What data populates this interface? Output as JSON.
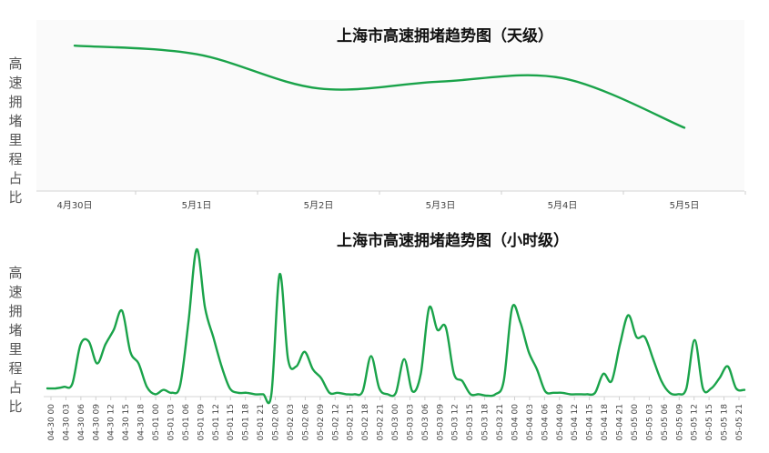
{
  "colors": {
    "line": "#1aa34a",
    "axis": "#d6d6d6",
    "panel": "#fafafa"
  },
  "ylabel": "高速拥堵里程占比",
  "chart_data": [
    {
      "type": "line",
      "title": "上海市高速拥堵趋势图（天级）",
      "xlabel": "",
      "ylabel": "高速拥堵里程占比",
      "categories": [
        "4月30日",
        "5月1日",
        "5月2日",
        "5月3日",
        "5月4日",
        "5月5日"
      ],
      "values": [
        0.85,
        0.8,
        0.6,
        0.64,
        0.66,
        0.37
      ],
      "ylim": [
        0,
        1
      ],
      "grid": false,
      "legend": "none"
    },
    {
      "type": "line",
      "title": "上海市高速拥堵趋势图（小时级）",
      "xlabel": "",
      "ylabel": "高速拥堵里程占比",
      "tick_labels": [
        "04-30 00",
        "04-30 03",
        "04-30 06",
        "04-30 09",
        "04-30 12",
        "04-30 15",
        "04-30 18",
        "05-01 00",
        "05-01 03",
        "05-01 06",
        "05-01 09",
        "05-01 12",
        "05-01 15",
        "05-01 18",
        "05-01 21",
        "05-02 00",
        "05-02 03",
        "05-02 06",
        "05-02 09",
        "05-02 12",
        "05-02 15",
        "05-02 18",
        "05-02 21",
        "05-03 00",
        "05-03 03",
        "05-03 06",
        "05-03 09",
        "05-03 12",
        "05-03 15",
        "05-03 18",
        "05-03 21",
        "05-04 00",
        "05-04 03",
        "05-04 06",
        "05-04 09",
        "05-04 12",
        "05-04 15",
        "05-04 18",
        "05-04 21",
        "05-05 00",
        "05-05 03",
        "05-05 06",
        "05-05 09",
        "05-05 12",
        "05-05 15",
        "05-05 18",
        "05-05 21"
      ],
      "values": [
        0.05,
        0.05,
        0.06,
        0.08,
        0.35,
        0.37,
        0.22,
        0.35,
        0.45,
        0.58,
        0.3,
        0.22,
        0.06,
        0.01,
        0.04,
        0.02,
        0.07,
        0.5,
        1.0,
        0.6,
        0.4,
        0.2,
        0.05,
        0.02,
        0.02,
        0.01,
        0.01,
        0.01,
        0.83,
        0.25,
        0.2,
        0.3,
        0.18,
        0.12,
        0.02,
        0.02,
        0.01,
        0.01,
        0.03,
        0.27,
        0.05,
        0.01,
        0.02,
        0.25,
        0.03,
        0.15,
        0.6,
        0.45,
        0.47,
        0.15,
        0.1,
        0.01,
        0.01,
        0.0,
        0.01,
        0.1,
        0.6,
        0.5,
        0.3,
        0.18,
        0.03,
        0.02,
        0.02,
        0.01,
        0.01,
        0.01,
        0.02,
        0.15,
        0.1,
        0.35,
        0.55,
        0.4,
        0.4,
        0.25,
        0.1,
        0.02,
        0.01,
        0.05,
        0.38,
        0.05,
        0.05,
        0.12,
        0.2,
        0.05,
        0.04
      ],
      "ylim": [
        0,
        1.05
      ],
      "grid": false,
      "legend": "none"
    }
  ]
}
